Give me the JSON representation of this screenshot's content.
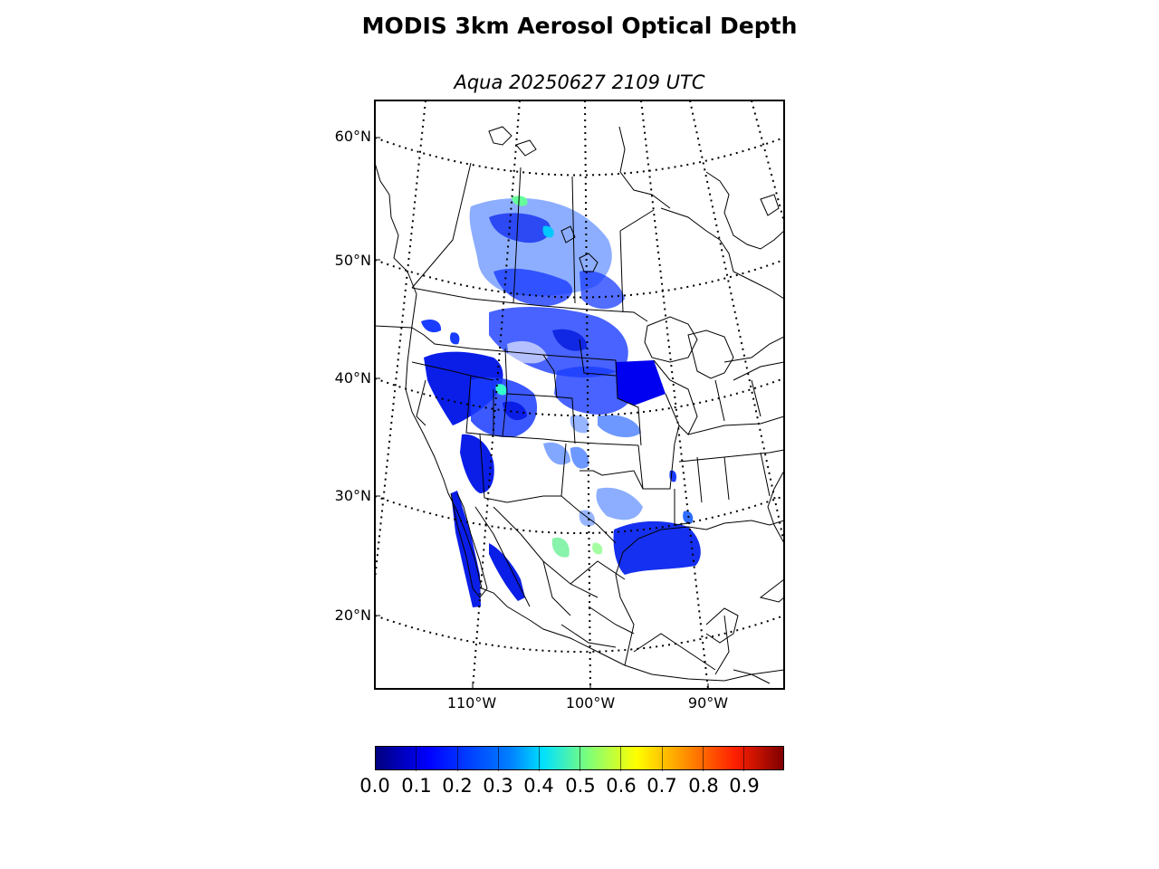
{
  "title": "MODIS 3km Aerosol Optical Depth",
  "subtitle": "Aqua 20250627 2109 UTC",
  "map": {
    "latitude_labels": [
      "60°N",
      "50°N",
      "40°N",
      "30°N",
      "20°N"
    ],
    "longitude_labels": [
      "110°W",
      "100°W",
      "90°W"
    ],
    "frame_color": "#000000",
    "coastline_color": "#000000",
    "graticule_style": "dotted"
  },
  "colorbar": {
    "colormap": "jet",
    "range": [
      0.0,
      1.0
    ],
    "tick_labels": [
      "0.0",
      "0.1",
      "0.2",
      "0.3",
      "0.4",
      "0.5",
      "0.6",
      "0.7",
      "0.8",
      "0.9"
    ],
    "colors": {
      "low": "#00007f",
      "blue": "#0000ff",
      "mid_low": "#0080ff",
      "cyan": "#00e0ff",
      "green": "#7dff7a",
      "yellow": "#ffff00",
      "orange": "#ff9000",
      "red": "#ff2000",
      "high": "#800000"
    }
  }
}
